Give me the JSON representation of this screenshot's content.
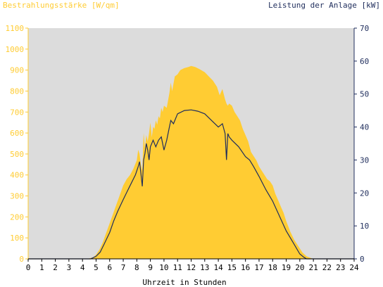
{
  "colors": {
    "plot_bg": "#dcdcdc",
    "irradiance": "#ffcc33",
    "power": "#1f2d5c",
    "left_axis": "#ffcc33",
    "right_axis": "#1f2d5c",
    "bottom_axis": "#000000"
  },
  "chart_data": {
    "type": "area",
    "title_left": "Bestrahlungsstärke [W/qm]",
    "title_right": "Leistung der Anlage [kW]",
    "xlabel": "Uhrzeit in Stunden",
    "xlim": [
      0,
      24
    ],
    "x_ticks": [
      "0",
      "1",
      "2",
      "3",
      "4",
      "5",
      "6",
      "7",
      "8",
      "9",
      "10",
      "11",
      "12",
      "13",
      "14",
      "15",
      "16",
      "17",
      "18",
      "19",
      "20",
      "21",
      "22",
      "23",
      "24"
    ],
    "ylim_left": [
      0,
      1100
    ],
    "y_ticks_left": [
      "0",
      "100",
      "200",
      "300",
      "400",
      "500",
      "600",
      "700",
      "800",
      "900",
      "1000",
      "1100"
    ],
    "ylim_right": [
      0,
      70
    ],
    "y_ticks_right": [
      "0",
      "10",
      "20",
      "30",
      "40",
      "50",
      "60",
      "70"
    ],
    "grid": false,
    "series": [
      {
        "name": "Bestrahlungsstärke [W/qm]",
        "axis": "left",
        "style": "area",
        "x": [
          0,
          4.4,
          4.8,
          5,
          5.25,
          5.5,
          5.75,
          6,
          6.25,
          6.5,
          6.75,
          7,
          7.25,
          7.5,
          7.75,
          8,
          8.1,
          8.2,
          8.3,
          8.4,
          8.5,
          8.6,
          8.7,
          8.8,
          8.9,
          9,
          9.1,
          9.2,
          9.3,
          9.4,
          9.5,
          9.6,
          9.7,
          9.8,
          9.9,
          10,
          10.2,
          10.4,
          10.5,
          10.6,
          10.8,
          11,
          11.2,
          11.5,
          11.8,
          12,
          12.3,
          12.6,
          13,
          13.3,
          13.6,
          13.9,
          14.1,
          14.3,
          14.5,
          14.6,
          14.7,
          14.8,
          15,
          15.2,
          15.4,
          15.6,
          15.8,
          16,
          16.2,
          16.4,
          16.6,
          16.8,
          17,
          17.2,
          17.4,
          17.6,
          17.8,
          18,
          18.2,
          18.4,
          18.6,
          18.8,
          19,
          19.3,
          19.6,
          19.9,
          20.2,
          20.5,
          20.8,
          21,
          24
        ],
        "y": [
          0,
          0,
          8,
          20,
          45,
          80,
          125,
          170,
          215,
          260,
          305,
          350,
          380,
          400,
          430,
          470,
          520,
          500,
          450,
          420,
          600,
          530,
          590,
          560,
          600,
          650,
          580,
          630,
          620,
          660,
          640,
          680,
          670,
          720,
          700,
          730,
          720,
          790,
          840,
          800,
          870,
          880,
          900,
          910,
          915,
          920,
          915,
          905,
          890,
          870,
          850,
          820,
          780,
          810,
          760,
          740,
          730,
          740,
          730,
          700,
          680,
          660,
          620,
          590,
          560,
          510,
          490,
          470,
          440,
          420,
          400,
          380,
          370,
          350,
          310,
          280,
          250,
          220,
          180,
          130,
          90,
          60,
          30,
          12,
          4,
          0,
          0
        ]
      },
      {
        "name": "Leistung der Anlage [kW]",
        "axis": "right",
        "style": "line",
        "x": [
          0,
          4.6,
          5,
          5.3,
          5.6,
          6,
          6.3,
          6.6,
          7,
          7.3,
          7.6,
          7.9,
          8.1,
          8.2,
          8.3,
          8.4,
          8.5,
          8.6,
          8.7,
          8.8,
          8.9,
          9,
          9.2,
          9.4,
          9.6,
          9.8,
          10,
          10.2,
          10.4,
          10.5,
          10.7,
          11,
          11.5,
          12,
          12.5,
          13,
          13.5,
          14,
          14.3,
          14.5,
          14.6,
          14.7,
          14.8,
          15,
          15.5,
          16,
          16.3,
          16.6,
          17,
          17.5,
          18,
          18.5,
          19,
          19.5,
          20,
          20.3,
          20.5,
          20.7,
          24
        ],
        "y": [
          0,
          0,
          0.8,
          2,
          4.5,
          8,
          11.5,
          14.5,
          18,
          20.5,
          23,
          25.5,
          28,
          29.5,
          26,
          22,
          30,
          32,
          35,
          33,
          30,
          34,
          36,
          34,
          36,
          37,
          33,
          36,
          40,
          42,
          41,
          44,
          45,
          45.2,
          44.8,
          44,
          42,
          40,
          41,
          38,
          30,
          38,
          37,
          36,
          34,
          31,
          30,
          28,
          25,
          21,
          17.5,
          13,
          8.5,
          5,
          1.5,
          0.5,
          0,
          0,
          0
        ]
      }
    ]
  }
}
